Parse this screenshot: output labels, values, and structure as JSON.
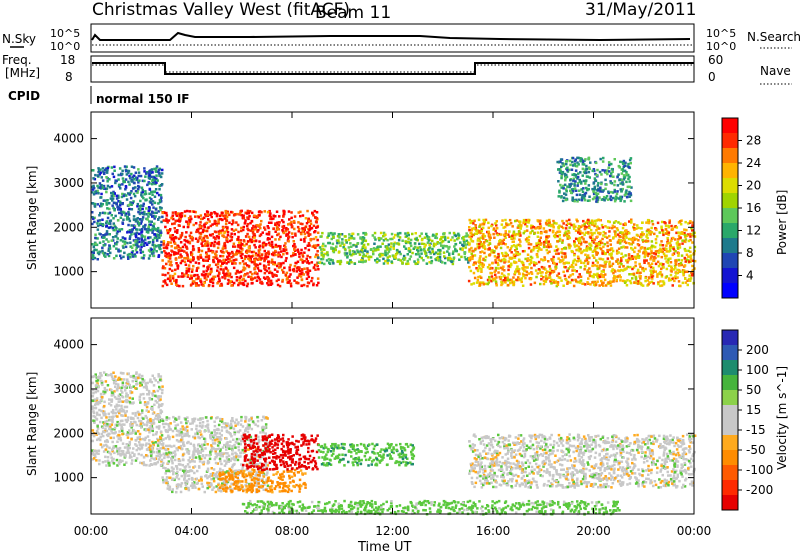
{
  "header": {
    "title": "Christmas Valley West (fitACF)",
    "beam": "Beam 11",
    "date": "31/May/2011"
  },
  "strips": {
    "nsky": {
      "label": "N.Sky",
      "ticks": [
        "10^5",
        "10^0"
      ]
    },
    "nsearch": {
      "label": "N.Search",
      "ticks": [
        "10^5",
        "10^0"
      ]
    },
    "freq": {
      "label_top": "Freq.",
      "label_unit": "[MHz]",
      "ticks": [
        "18",
        "8"
      ]
    },
    "nave": {
      "label": "Nave",
      "ticks": [
        "60",
        "0"
      ]
    },
    "cpid": {
      "label": "CPID",
      "value": "normal 150 IF"
    }
  },
  "colorbars": {
    "power": {
      "label": "Power [dB]",
      "ticks": [
        "28",
        "24",
        "20",
        "16",
        "12",
        "8",
        "4"
      ],
      "colors": [
        "#ff0000",
        "#ff2a00",
        "#ff7a00",
        "#ffb400",
        "#dcdc00",
        "#a0d400",
        "#5ec85a",
        "#2aa86a",
        "#1e7a8c",
        "#2046b4",
        "#1414d2",
        "#0000ff"
      ]
    },
    "velocity": {
      "label": "Velocity [m s^-1]",
      "ticks": [
        "200",
        "100",
        "50",
        "15",
        "-15",
        "-50",
        "-100",
        "-200"
      ],
      "colors": [
        "#2828b4",
        "#2e5ab4",
        "#1e8c6e",
        "#46b43c",
        "#8cd24a",
        "#c8c8c8",
        "#c8c8c8",
        "#ffaa1e",
        "#ff8c00",
        "#ff5a00",
        "#ff2a00",
        "#e60000"
      ]
    }
  },
  "axes": {
    "ylabel": "Slant Range [km]",
    "yticks": [
      "4000",
      "3000",
      "2000",
      "1000"
    ],
    "xticks": [
      "00:00",
      "04:00",
      "08:00",
      "12:00",
      "16:00",
      "20:00",
      "00:00"
    ],
    "xlabel": "Time UT"
  },
  "chart_data": [
    {
      "type": "heatmap",
      "title": "Power",
      "xlabel": "",
      "ylabel": "Slant Range [km]",
      "xlim": [
        0,
        24
      ],
      "ylim": [
        180,
        4600
      ],
      "regions": [
        {
          "t": [
            0.0,
            2.8
          ],
          "r": [
            1300,
            3400
          ],
          "value": 8
        },
        {
          "t": [
            2.8,
            9.0
          ],
          "r": [
            700,
            2400
          ],
          "value": 28
        },
        {
          "t": [
            9.0,
            15.0
          ],
          "r": [
            1200,
            1900
          ],
          "value": 14
        },
        {
          "t": [
            15.0,
            24.0
          ],
          "r": [
            700,
            2200
          ],
          "value": 22
        },
        {
          "t": [
            18.5,
            21.5
          ],
          "r": [
            2600,
            3600
          ],
          "value": 10
        }
      ]
    },
    {
      "type": "heatmap",
      "title": "Velocity",
      "xlabel": "Time UT",
      "ylabel": "Slant Range [km]",
      "xlim": [
        0,
        24
      ],
      "ylim": [
        180,
        4600
      ],
      "regions": [
        {
          "t": [
            0.0,
            2.8
          ],
          "r": [
            1300,
            3400
          ],
          "value": 0
        },
        {
          "t": [
            2.8,
            7.0
          ],
          "r": [
            700,
            2400
          ],
          "value": 0
        },
        {
          "t": [
            5.0,
            8.5
          ],
          "r": [
            700,
            1200
          ],
          "value": -60
        },
        {
          "t": [
            6.0,
            9.0
          ],
          "r": [
            1200,
            2000
          ],
          "value": -180
        },
        {
          "t": [
            9.0,
            12.8
          ],
          "r": [
            1300,
            1800
          ],
          "value": 40
        },
        {
          "t": [
            15.0,
            24.0
          ],
          "r": [
            800,
            2000
          ],
          "value": 0
        },
        {
          "t": [
            6.0,
            21.0
          ],
          "r": [
            200,
            500
          ],
          "value": 30
        }
      ]
    }
  ]
}
